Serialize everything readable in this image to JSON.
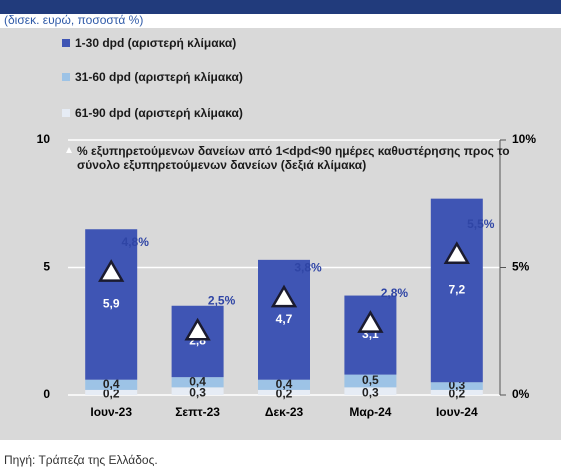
{
  "chart_data": {
    "type": "bar",
    "stacked": true,
    "subtitle": "(δισεκ. ευρώ, ποσοστά %)",
    "source": "Πηγή: Τράπεζα της Ελλάδος.",
    "categories": [
      "Ιουν-23",
      "Σεπτ-23",
      "Δεκ-23",
      "Μαρ-24",
      "Ιουν-24"
    ],
    "series": [
      {
        "name": "61-90 dpd (αριστερή κλίμακα)",
        "color": "#e6ecf5",
        "values": [
          0.2,
          0.3,
          0.2,
          0.3,
          0.2
        ],
        "value_labels": [
          "0,2",
          "0,3",
          "0,2",
          "0,3",
          "0,2"
        ]
      },
      {
        "name": "31-60 dpd (αριστερή κλίμακα)",
        "color": "#9dc3e6",
        "values": [
          0.4,
          0.4,
          0.4,
          0.5,
          0.3
        ],
        "value_labels": [
          "0,4",
          "0,4",
          "0,4",
          "0,5",
          "0,3"
        ]
      },
      {
        "name": "1-30 dpd (αριστερή κλίμακα)",
        "color": "#3f55b4",
        "values": [
          5.9,
          2.8,
          4.7,
          3.1,
          7.2
        ],
        "value_labels": [
          "5,9",
          "2,8",
          "4,7",
          "3,1",
          "7,2"
        ]
      },
      {
        "name": "%  εξυπηρετούμενων δανείων από  1<dpd<90 ημέρες καθυστέρησης προς το σύνολο εξυπηρετούμενων δανείων (δεξιά κλίμακα)",
        "type": "scatter",
        "axis": "y2",
        "color": "#ffffff",
        "values": [
          4.8,
          2.5,
          3.8,
          2.8,
          5.5
        ],
        "value_labels": [
          "4,8%",
          "2,5%",
          "3,8%",
          "2,8%",
          "5,5%"
        ]
      }
    ],
    "ylim": [
      0,
      10
    ],
    "yticks": [
      0,
      5,
      10
    ],
    "y2lim": [
      0,
      10
    ],
    "y2ticks": [
      {
        "value": 0,
        "label": "0%"
      },
      {
        "value": 5,
        "label": "5%"
      },
      {
        "value": 10,
        "label": "10%"
      }
    ],
    "grid": true
  }
}
